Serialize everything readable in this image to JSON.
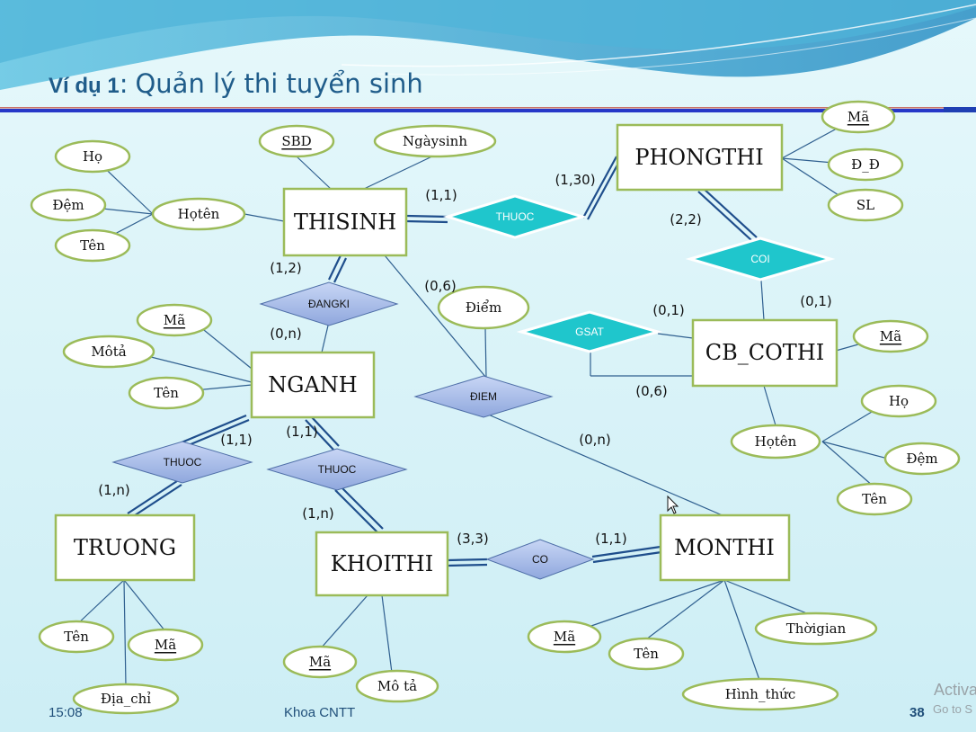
{
  "title": {
    "prefix": "Ví dụ 1",
    "colon": ":",
    "text": "Quản lý thi tuyển sinh"
  },
  "entities": {
    "thisinh": "THISINH",
    "phongthi": "PHONGTHI",
    "nganh": "NGANH",
    "cb_cothi": "CB_COTHI",
    "truong": "TRUONG",
    "khoithi": "KHOITHI",
    "monthi": "MONTHI"
  },
  "relationships": {
    "thuoc_thisinh_phongthi": "THUOC",
    "coi": "COI",
    "dangki": "ĐANGKI",
    "gsat": "GSAT",
    "diem": "ĐIEM",
    "thuoc_nganh_truong": "THUOC",
    "thuoc_nganh_khoithi": "THUOC",
    "co": "CO"
  },
  "attributes": {
    "thisinh_sbd": "SBD",
    "thisinh_ngaysinh": "Ngàysinh",
    "thisinh_hoten": "Họtên",
    "thisinh_ho": "Họ",
    "thisinh_dem": "Đệm",
    "thisinh_ten": "Tên",
    "phongthi_ma": "Mã",
    "phongthi_dd": "Đ_Đ",
    "phongthi_sl": "SL",
    "nganh_ma": "Mã",
    "nganh_mota": "Môtả",
    "nganh_ten": "Tên",
    "diem": "Điểm",
    "cb_ma": "Mã",
    "cb_hoten": "Họtên",
    "cb_ho": "Họ",
    "cb_dem": "Đệm",
    "cb_ten": "Tên",
    "truong_ten": "Tên",
    "truong_ma": "Mã",
    "truong_diachi": "Địa_chỉ",
    "khoithi_ma": "Mã",
    "khoithi_mota": "Mô tả",
    "monthi_ma": "Mã",
    "monthi_ten": "Tên",
    "monthi_thoigian": "Thờigian",
    "monthi_hinhthuc": "Hình_thức"
  },
  "cardinalities": {
    "thisinh_thuoc": "(1,1)",
    "phongthi_thuoc": "(1,30)",
    "phongthi_coi": "(2,2)",
    "cb_coi": "(0,1)",
    "thisinh_dangki": "(1,2)",
    "nganh_dangki": "(0,n)",
    "thisinh_diem": "(0,6)",
    "cb_gsat_top": "(0,1)",
    "cb_gsat_bottom": "(0,6)",
    "monthi_diem": "(0,n)",
    "nganh_thuoc_truong": "(1,1)",
    "truong_thuoc": "(1,n)",
    "nganh_thuoc_khoithi": "(1,1)",
    "khoithi_thuoc": "(1,n)",
    "khoithi_co": "(3,3)",
    "monthi_co": "(1,1)"
  },
  "footer": {
    "time": "15:08",
    "dept": "Khoa CNTT",
    "page": "38"
  },
  "watermark": {
    "line1": "Activa",
    "line2": "Go to S"
  },
  "colors": {
    "entity_border": "#9bbb59",
    "relationship_blue": "#8fa7dd",
    "relationship_cyan": "#1fc6cc",
    "title": "#1f5c8a",
    "background": "#d9f3f8"
  }
}
